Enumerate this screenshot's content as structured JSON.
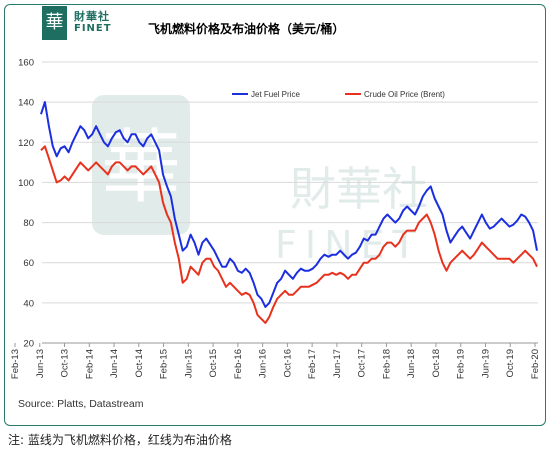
{
  "logo": {
    "glyph": "華",
    "name_cn": "財華社",
    "name_en": "FINET"
  },
  "watermark": {
    "glyph": "華",
    "cn": "財華社",
    "en": "FINET"
  },
  "footer": {
    "source": "Source: Platts, Datastream",
    "note": "注:  蓝线为飞机燃料价格，红线为布油价格"
  },
  "chart_data": {
    "type": "line",
    "title": "飞机燃料价格及布油价格（美元/桶）",
    "xlabel": "",
    "ylabel": "",
    "ylim": [
      20,
      160
    ],
    "yticks": [
      20,
      40,
      60,
      80,
      100,
      120,
      140,
      160
    ],
    "grid": "horizontal",
    "legend_position": "top",
    "xticks": [
      "Feb-13",
      "Jun-13",
      "Oct-13",
      "Feb-14",
      "Jun-14",
      "Oct-14",
      "Feb-15",
      "Jun-15",
      "Oct-15",
      "Feb-16",
      "Jun-16",
      "Oct-16",
      "Feb-17",
      "Jun-17",
      "Oct-17",
      "Feb-18",
      "Jun-18",
      "Oct-18",
      "Feb-19",
      "Jun-19",
      "Oct-19",
      "Feb-20"
    ],
    "series": [
      {
        "name": "Jet Fuel Price",
        "color": "#1c2fe0",
        "values": [
          134,
          140,
          128,
          118,
          113,
          117,
          118,
          115,
          120,
          124,
          128,
          126,
          122,
          124,
          128,
          124,
          120,
          118,
          122,
          125,
          126,
          122,
          120,
          124,
          124,
          120,
          118,
          122,
          124,
          120,
          116,
          104,
          98,
          93,
          82,
          74,
          66,
          68,
          74,
          70,
          64,
          70,
          72,
          69,
          66,
          62,
          58,
          58,
          62,
          60,
          56,
          55,
          57,
          55,
          50,
          44,
          42,
          38,
          40,
          45,
          50,
          52,
          56,
          54,
          52,
          55,
          57,
          56,
          56,
          57,
          59,
          62,
          64,
          63,
          64,
          64,
          66,
          64,
          62,
          64,
          65,
          68,
          72,
          71,
          74,
          74,
          78,
          82,
          84,
          82,
          80,
          82,
          86,
          88,
          86,
          84,
          88,
          93,
          96,
          98,
          92,
          88,
          84,
          76,
          70,
          73,
          76,
          78,
          75,
          72,
          76,
          80,
          84,
          80,
          77,
          78,
          80,
          82,
          80,
          78,
          79,
          81,
          84,
          83,
          80,
          76,
          66
        ]
      },
      {
        "name": "Crude Oil Price (Brent)",
        "color": "#e8321e",
        "values": [
          116,
          118,
          112,
          106,
          100,
          101,
          103,
          101,
          104,
          107,
          110,
          108,
          106,
          108,
          110,
          108,
          106,
          104,
          108,
          110,
          110,
          108,
          106,
          108,
          108,
          106,
          104,
          106,
          108,
          104,
          100,
          90,
          84,
          80,
          70,
          62,
          50,
          52,
          58,
          56,
          54,
          60,
          62,
          62,
          58,
          56,
          52,
          48,
          50,
          48,
          46,
          44,
          45,
          44,
          40,
          34,
          32,
          30,
          33,
          38,
          42,
          44,
          46,
          44,
          44,
          46,
          48,
          48,
          48,
          49,
          50,
          52,
          54,
          54,
          55,
          54,
          55,
          54,
          52,
          54,
          54,
          57,
          60,
          60,
          62,
          62,
          64,
          68,
          70,
          70,
          68,
          70,
          74,
          76,
          76,
          76,
          80,
          82,
          84,
          80,
          74,
          66,
          60,
          56,
          60,
          62,
          64,
          66,
          64,
          62,
          64,
          67,
          70,
          68,
          66,
          64,
          62,
          62,
          62,
          62,
          60,
          62,
          64,
          66,
          64,
          62,
          58
        ]
      }
    ]
  }
}
